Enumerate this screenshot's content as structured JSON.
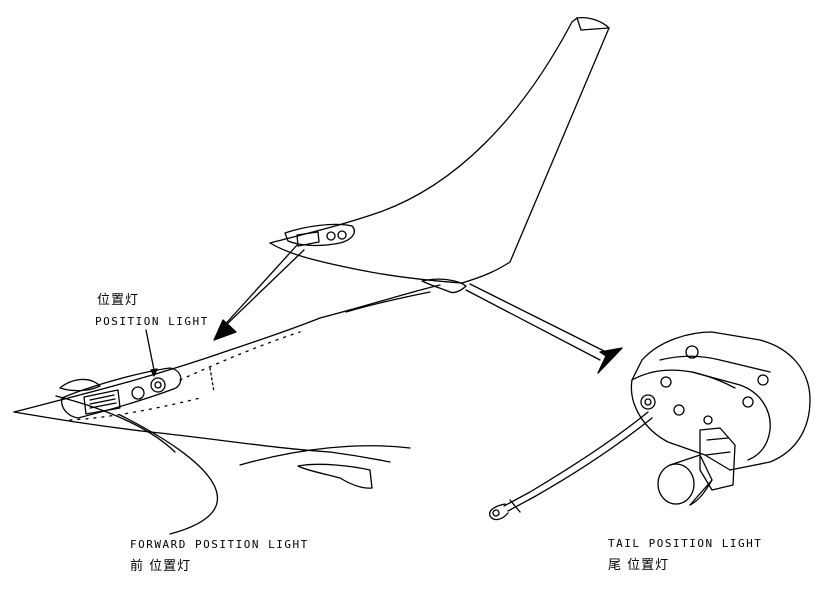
{
  "labels": {
    "position_light_cn": "位置灯",
    "position_light_en": "POSITION LIGHT",
    "forward_light_en": "FORWARD POSITION LIGHT",
    "forward_light_cn": "前 位置灯",
    "tail_light_en": "TAIL POSITION LIGHT",
    "tail_light_cn": "尾 位置灯"
  },
  "colors": {
    "ink": "#000000",
    "paper": "#ffffff"
  }
}
